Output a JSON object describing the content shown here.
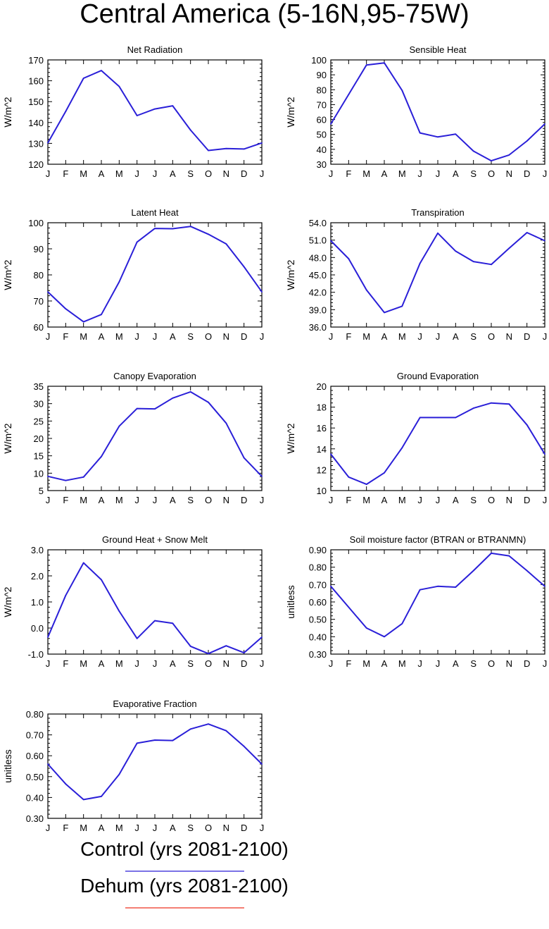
{
  "title": "Central America (5-16N,95-75W)",
  "months": [
    "J",
    "F",
    "M",
    "A",
    "M",
    "J",
    "J",
    "A",
    "S",
    "O",
    "N",
    "D",
    "J"
  ],
  "colors": {
    "control": "#2a1fd8",
    "dehum": "#ee3322",
    "axis": "#000000"
  },
  "legend": [
    {
      "label": "Control (yrs 2081-2100)",
      "color": "#2a1fd8"
    },
    {
      "label": "Dehum (yrs 2081-2100)",
      "color": "#ee3322"
    }
  ],
  "chart_data": [
    {
      "type": "line",
      "title": "Net Radiation",
      "ylabel": "W/m^2",
      "ylim": [
        120,
        170
      ],
      "yticks": [
        "120",
        "130",
        "140",
        "150",
        "160",
        "170"
      ],
      "series": [
        {
          "name": "Control",
          "values": [
            130.2,
            145.3,
            161.2,
            164.9,
            157.3,
            143.3,
            146.5,
            148.0,
            136.4,
            126.6,
            127.5,
            127.3,
            130.2
          ]
        }
      ]
    },
    {
      "type": "line",
      "title": "Sensible Heat",
      "ylabel": "W/m^2",
      "ylim": [
        30,
        100
      ],
      "yticks": [
        "30",
        "40",
        "50",
        "60",
        "70",
        "80",
        "90",
        "100"
      ],
      "series": [
        {
          "name": "Control",
          "values": [
            57.0,
            76.8,
            96.6,
            98.0,
            79.5,
            51.0,
            48.3,
            50.2,
            38.8,
            32.3,
            36.2,
            45.6,
            57.0
          ]
        }
      ]
    },
    {
      "type": "line",
      "title": "Latent Heat",
      "ylabel": "W/m^2",
      "ylim": [
        60,
        100
      ],
      "yticks": [
        "60",
        "70",
        "80",
        "90",
        "100"
      ],
      "series": [
        {
          "name": "Control",
          "values": [
            73.5,
            67.0,
            62.0,
            64.8,
            77.3,
            92.6,
            97.8,
            97.7,
            98.6,
            95.6,
            91.9,
            83.1,
            73.5
          ]
        }
      ]
    },
    {
      "type": "line",
      "title": "Transpiration",
      "ylabel": "W/m^2",
      "ylim": [
        36,
        54
      ],
      "yticks": [
        "36.0",
        "39.0",
        "42.0",
        "45.0",
        "48.0",
        "51.0",
        "54.0"
      ],
      "series": [
        {
          "name": "Control",
          "values": [
            50.9,
            47.8,
            42.4,
            38.5,
            39.6,
            47.0,
            52.2,
            49.1,
            47.3,
            46.8,
            49.6,
            52.3,
            50.9
          ]
        }
      ]
    },
    {
      "type": "line",
      "title": "Canopy Evaporation",
      "ylabel": "W/m^2",
      "ylim": [
        5,
        35
      ],
      "yticks": [
        "5",
        "10",
        "15",
        "20",
        "25",
        "30",
        "35"
      ],
      "series": [
        {
          "name": "Control",
          "values": [
            9.1,
            7.9,
            8.9,
            14.8,
            23.5,
            28.6,
            28.5,
            31.6,
            33.4,
            30.4,
            24.4,
            14.4,
            9.1
          ]
        }
      ]
    },
    {
      "type": "line",
      "title": "Ground Evaporation",
      "ylabel": "W/m^2",
      "ylim": [
        10,
        20
      ],
      "yticks": [
        "10",
        "12",
        "14",
        "16",
        "18",
        "20"
      ],
      "series": [
        {
          "name": "Control",
          "values": [
            13.5,
            11.3,
            10.6,
            11.7,
            14.1,
            17.0,
            17.0,
            17.0,
            17.9,
            18.4,
            18.3,
            16.3,
            13.5
          ]
        }
      ]
    },
    {
      "type": "line",
      "title": "Ground Heat + Snow Melt",
      "ylabel": "W/m^2",
      "ylim": [
        -1,
        3
      ],
      "yticks": [
        "-1.0",
        "0.0",
        "1.0",
        "2.0",
        "3.0"
      ],
      "series": [
        {
          "name": "Control",
          "values": [
            -0.35,
            1.25,
            2.5,
            1.85,
            0.65,
            -0.4,
            0.28,
            0.18,
            -0.7,
            -0.98,
            -0.68,
            -0.95,
            -0.35
          ]
        }
      ]
    },
    {
      "type": "line",
      "title": "Soil moisture factor (BTRAN or BTRANMN)",
      "ylabel": "unitless",
      "ylim": [
        0.3,
        0.9
      ],
      "yticks": [
        "0.30",
        "0.40",
        "0.50",
        "0.60",
        "0.70",
        "0.80",
        "0.90"
      ],
      "series": [
        {
          "name": "Control",
          "values": [
            0.69,
            0.57,
            0.45,
            0.4,
            0.475,
            0.67,
            0.69,
            0.685,
            0.78,
            0.88,
            0.865,
            0.78,
            0.69
          ]
        }
      ]
    },
    {
      "type": "line",
      "title": "Evaporative Fraction",
      "ylabel": "unitless",
      "ylim": [
        0.3,
        0.8
      ],
      "yticks": [
        "0.30",
        "0.40",
        "0.50",
        "0.60",
        "0.70",
        "0.80"
      ],
      "series": [
        {
          "name": "Control",
          "values": [
            0.56,
            0.465,
            0.39,
            0.405,
            0.51,
            0.66,
            0.675,
            0.673,
            0.728,
            0.752,
            0.72,
            0.645,
            0.56
          ]
        }
      ]
    }
  ]
}
